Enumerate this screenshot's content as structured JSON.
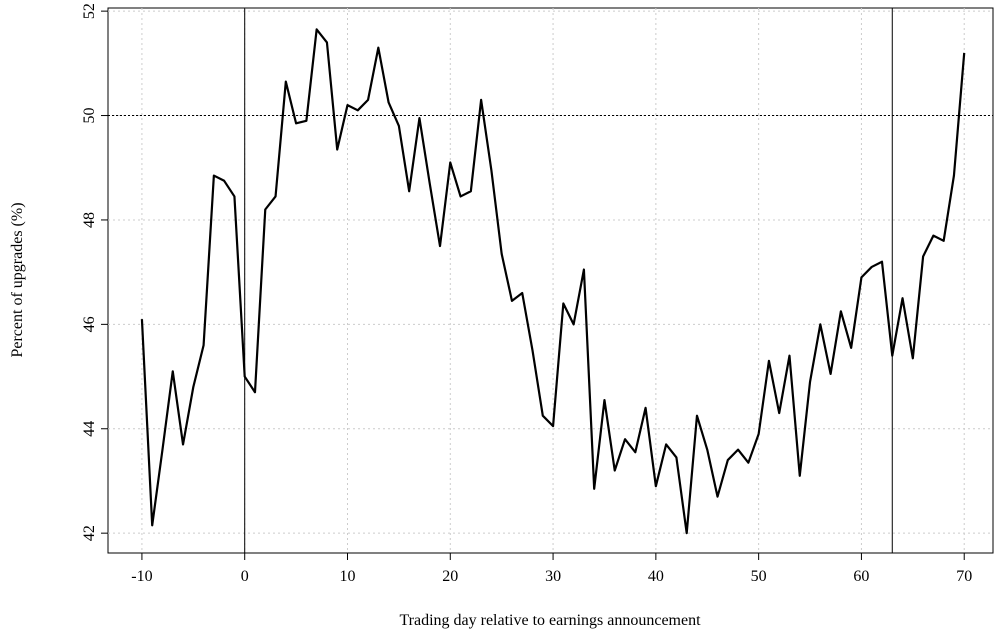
{
  "chart_data": {
    "type": "line",
    "x_label": "Trading day relative to earnings announcement",
    "y_label": "Percent of upgrades (%)",
    "x": [
      -10,
      -9,
      -8,
      -7,
      -6,
      -5,
      -4,
      -3,
      -2,
      -1,
      0,
      1,
      2,
      3,
      4,
      5,
      6,
      7,
      8,
      9,
      10,
      11,
      12,
      13,
      14,
      15,
      16,
      17,
      18,
      19,
      20,
      21,
      22,
      23,
      24,
      25,
      26,
      27,
      28,
      29,
      30,
      31,
      32,
      33,
      34,
      35,
      36,
      37,
      38,
      39,
      40,
      41,
      42,
      43,
      44,
      45,
      46,
      47,
      48,
      49,
      50,
      51,
      52,
      53,
      54,
      55,
      56,
      57,
      58,
      59,
      60,
      61,
      62,
      63,
      64,
      65,
      66,
      67,
      68,
      69,
      70
    ],
    "series": [
      {
        "color": "#000000",
        "values": [
          46.1,
          42.15,
          43.6,
          45.1,
          43.7,
          44.8,
          45.6,
          48.85,
          48.75,
          48.45,
          45.0,
          44.7,
          48.2,
          48.45,
          50.65,
          49.85,
          49.9,
          51.65,
          51.4,
          49.35,
          50.2,
          50.1,
          50.3,
          51.3,
          50.25,
          49.8,
          48.55,
          49.95,
          48.7,
          47.5,
          49.1,
          48.45,
          48.55,
          50.3,
          48.95,
          47.35,
          46.45,
          46.6,
          45.5,
          44.25,
          44.05,
          46.4,
          46.0,
          47.05,
          42.85,
          44.55,
          43.2,
          43.8,
          43.55,
          44.4,
          42.9,
          43.7,
          43.45,
          42.0,
          44.25,
          43.6,
          42.7,
          43.4,
          43.6,
          43.35,
          43.9,
          45.3,
          44.3,
          45.4,
          43.1,
          44.9,
          46.0,
          45.05,
          46.25,
          45.55,
          46.9,
          47.1,
          47.2,
          45.4,
          46.5,
          45.35,
          47.3,
          47.7,
          47.6,
          48.85,
          51.2
        ]
      }
    ],
    "xlim": [
      -13.3,
      72.8
    ],
    "ylim": [
      41.62,
      52.06
    ],
    "xticks": [
      -10,
      0,
      10,
      20,
      30,
      40,
      50,
      60,
      70
    ],
    "yticks": [
      42,
      44,
      46,
      48,
      50,
      52
    ],
    "grid": true,
    "vlines": [
      0,
      63
    ],
    "hline": 50
  }
}
